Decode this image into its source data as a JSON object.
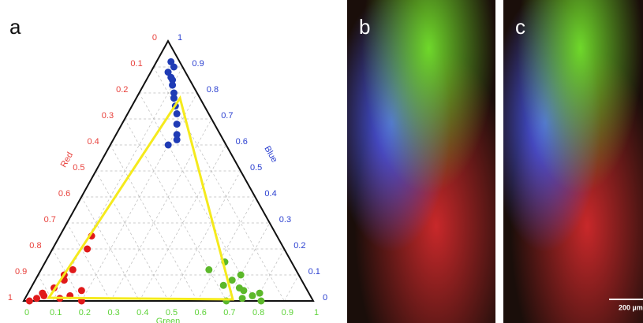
{
  "chart_data": {
    "type": "ternary",
    "panel_label": "a",
    "red_axis": {
      "label": "Red",
      "color": "#e8413c",
      "ticks": [
        0,
        0.1,
        0.2,
        0.3,
        0.4,
        0.5,
        0.6,
        0.7,
        0.8,
        0.9,
        1
      ]
    },
    "blue_axis": {
      "label": "Blue",
      "color": "#2a3fd0",
      "ticks": [
        0,
        0.1,
        0.2,
        0.3,
        0.4,
        0.5,
        0.6,
        0.7,
        0.8,
        0.9,
        1
      ]
    },
    "green_axis": {
      "label": "Green",
      "color": "#5fd33a",
      "ticks": [
        0,
        0.1,
        0.2,
        0.3,
        0.4,
        0.5,
        0.6,
        0.7,
        0.8,
        0.9,
        1
      ]
    },
    "grid": true,
    "series": [
      {
        "color": "#1f3bb5",
        "blue": [
          0.92,
          0.9,
          0.88,
          0.86,
          0.85,
          0.83,
          0.8,
          0.78,
          0.75,
          0.72,
          0.68,
          0.64,
          0.6,
          0.62
        ],
        "green": [
          0.05,
          0.07,
          0.06,
          0.08,
          0.09,
          0.1,
          0.12,
          0.13,
          0.15,
          0.17,
          0.19,
          0.21,
          0.2,
          0.22
        ],
        "red": [
          0.03,
          0.03,
          0.06,
          0.06,
          0.06,
          0.07,
          0.08,
          0.09,
          0.1,
          0.11,
          0.13,
          0.15,
          0.2,
          0.16
        ]
      },
      {
        "color": "#e0191a",
        "blue": [
          0,
          0.01,
          0.02,
          0.03,
          0.05,
          0.08,
          0.1,
          0.12,
          0.02,
          0.01,
          0.2,
          0.25,
          0.04,
          0
        ],
        "green": [
          0.02,
          0.04,
          0.06,
          0.05,
          0.08,
          0.1,
          0.09,
          0.11,
          0.15,
          0.12,
          0.12,
          0.11,
          0.18,
          0.2
        ],
        "red": [
          0.98,
          0.95,
          0.92,
          0.92,
          0.87,
          0.82,
          0.81,
          0.77,
          0.83,
          0.87,
          0.68,
          0.64,
          0.78,
          0.8
        ]
      },
      {
        "color": "#5cb82a",
        "blue": [
          0,
          0.01,
          0.02,
          0.03,
          0.05,
          0.08,
          0.1,
          0.15,
          0.06,
          0,
          0.12,
          0.04
        ],
        "green": [
          0.7,
          0.75,
          0.78,
          0.8,
          0.72,
          0.68,
          0.7,
          0.62,
          0.66,
          0.82,
          0.58,
          0.74
        ],
        "red": [
          0.3,
          0.24,
          0.2,
          0.17,
          0.23,
          0.24,
          0.2,
          0.23,
          0.28,
          0.18,
          0.3,
          0.22
        ]
      }
    ],
    "outline": {
      "color": "#f5ea1c",
      "red": [
        0.907,
        0.275,
        0.069
      ],
      "green": [
        0.081,
        0.719,
        0.151
      ],
      "blue": [
        0.012,
        0.006,
        0.78
      ]
    }
  },
  "images": [
    {
      "panel_label": "b"
    },
    {
      "panel_label": "c",
      "scale_bar": "200 µm"
    }
  ]
}
